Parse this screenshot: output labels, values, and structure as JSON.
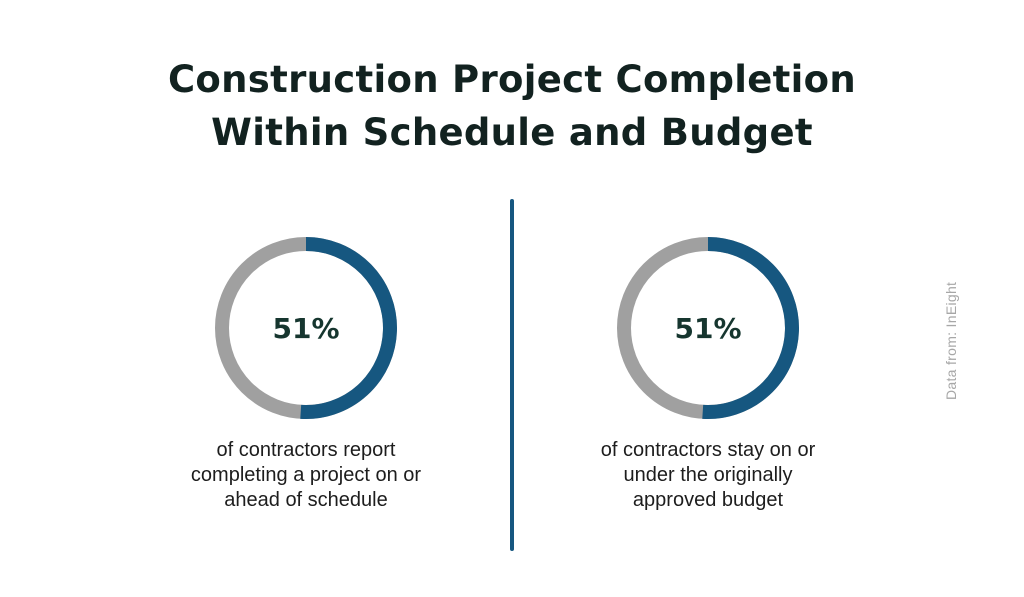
{
  "title": {
    "line1": "Construction Project Completion",
    "line2": "Within Schedule and Budget"
  },
  "source": "Data from: InEight",
  "colors": {
    "filled": "#165780",
    "remaining": "#a0a0a0",
    "title": "#122220",
    "value_text": "#16362f"
  },
  "chart_data": [
    {
      "type": "pie",
      "variant": "donut",
      "values": [
        51,
        49
      ],
      "value_label": "51%",
      "caption": [
        "of contractors report",
        "completing a project on or",
        "ahead of schedule"
      ]
    },
    {
      "type": "pie",
      "variant": "donut",
      "values": [
        51,
        49
      ],
      "value_label": "51%",
      "caption": [
        "of contractors stay on or",
        "under the originally",
        "approved budget"
      ]
    }
  ]
}
